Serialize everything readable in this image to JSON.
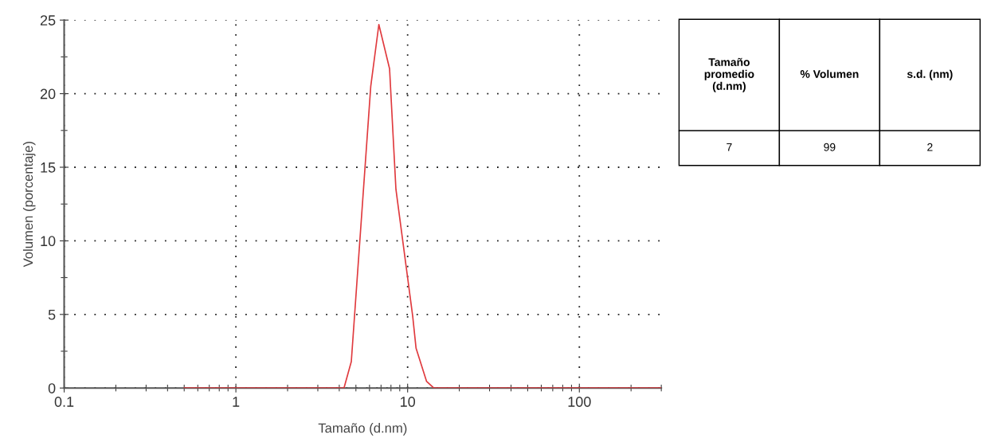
{
  "chart_data": [
    {
      "type": "line",
      "xlabel": "Tamaño (d.nm)",
      "ylabel": "Volumen (porcentaje)",
      "log": "x",
      "x": [
        0.5,
        4.26,
        4.7,
        6.1,
        6.8,
        7.85,
        8.55,
        10.7,
        11.2,
        12.9,
        14.2,
        300
      ],
      "series": [
        {
          "color": "#e03a3e",
          "values": [
            0,
            0,
            1.8,
            20.5,
            24.7,
            21.7,
            13.5,
            4.9,
            2.7,
            0.45,
            0,
            0
          ]
        }
      ],
      "xlim": [
        0.1,
        300
      ],
      "xticks": [
        0.1,
        1,
        10,
        100
      ],
      "ylim": [
        0,
        25
      ],
      "yticks": [
        0,
        5,
        10,
        15,
        20,
        25
      ],
      "grid": true,
      "line_style": "solid",
      "marker": "none"
    },
    {
      "type": "other",
      "annotations": [
        "Tamaño\npromedio\n(d.nm)",
        "% Volumen",
        "s.d. (nm)",
        "7",
        "99",
        "2"
      ]
    }
  ]
}
